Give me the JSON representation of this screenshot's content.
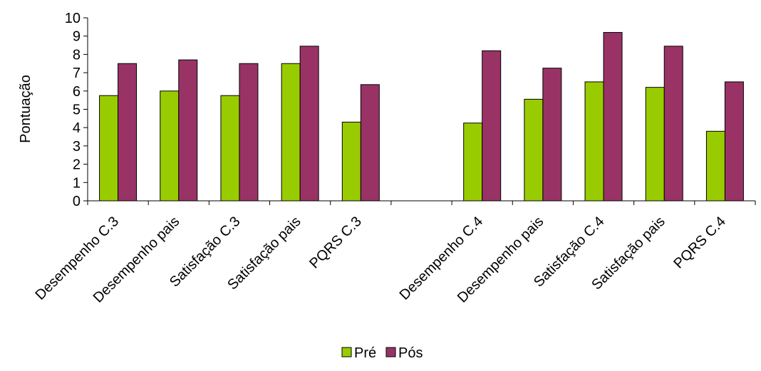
{
  "chart_data": {
    "type": "bar",
    "title": "",
    "xlabel": "",
    "ylabel": "Pontuação",
    "ylim": [
      0,
      10
    ],
    "yticks": [
      0,
      1,
      2,
      3,
      4,
      5,
      6,
      7,
      8,
      9,
      10
    ],
    "grid": false,
    "legend_position": "bottom",
    "categories": [
      "Desempenho C.3",
      "Desempenho pais",
      "Satisfação C.3",
      "Satisfação pais",
      "PQRS C.3",
      "",
      "Desempenho C.4",
      "Desempenho pais",
      "Satisfação C.4",
      "Satisfação pais",
      "PQRS C.4"
    ],
    "series": [
      {
        "name": "Pré",
        "color": "#99CC00",
        "values": [
          5.75,
          6.0,
          5.75,
          7.5,
          4.3,
          null,
          4.25,
          5.55,
          6.5,
          6.2,
          3.8
        ]
      },
      {
        "name": "Pós",
        "color": "#993366",
        "values": [
          7.5,
          7.7,
          7.5,
          8.45,
          6.35,
          null,
          8.2,
          7.25,
          9.2,
          8.45,
          6.5
        ]
      }
    ]
  }
}
